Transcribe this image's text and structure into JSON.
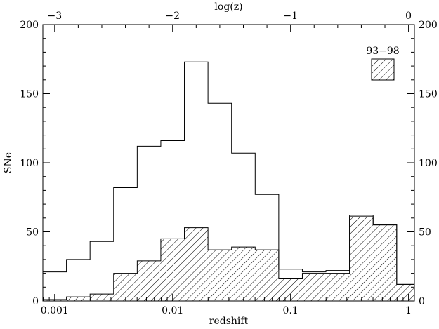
{
  "chart_data": {
    "type": "bar",
    "title": "",
    "xlabel": "redshift",
    "ylabel": "SNe",
    "top_xlabel": "log(z)",
    "x_scale": "log",
    "xlim": [
      -3.1,
      0.05
    ],
    "ylim": [
      0,
      200
    ],
    "y_ticks": [
      0,
      50,
      100,
      150,
      200
    ],
    "y_tick_labels": [
      "0",
      "50",
      "100",
      "150",
      "200"
    ],
    "x_ticks": [
      0.001,
      0.01,
      0.1,
      1
    ],
    "x_tick_labels": [
      "0.001",
      "0.01",
      "0.1",
      "1"
    ],
    "top_ticks": [
      -3,
      -2,
      -1,
      0
    ],
    "top_tick_labels": [
      "−3",
      "−2",
      "−1",
      "0"
    ],
    "bin_edges_log": [
      -3.1,
      -2.9,
      -2.7,
      -2.5,
      -2.3,
      -2.1,
      -1.9,
      -1.7,
      -1.5,
      -1.3,
      -1.1,
      -0.9,
      -0.7,
      -0.5,
      -0.3,
      -0.1,
      0.05
    ],
    "series": [
      {
        "style": "open",
        "values": [
          21,
          30,
          43,
          82,
          112,
          116,
          173,
          143,
          107,
          77,
          23,
          21,
          22,
          62,
          55,
          12
        ]
      },
      {
        "name": "93−98",
        "style": "hatched",
        "values": [
          1,
          3,
          5,
          20,
          29,
          45,
          53,
          37,
          39,
          37,
          16,
          20,
          20,
          61,
          55,
          12
        ]
      }
    ],
    "legend": {
      "label": "93−98",
      "placement": "top-right"
    },
    "grid": false
  }
}
